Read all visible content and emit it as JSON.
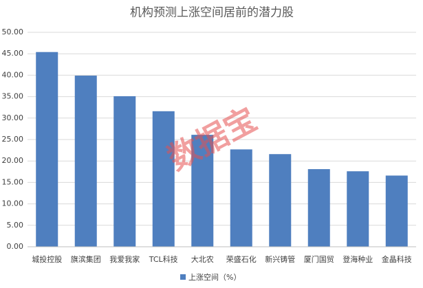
{
  "chart_data": {
    "type": "bar",
    "title": "机构预测上涨空间居前的潜力股",
    "watermark": "数据宝",
    "categories": [
      "城投控股",
      "旗滨集团",
      "我爱我家",
      "TCL科技",
      "大北农",
      "荣盛石化",
      "新兴铸管",
      "厦门国贸",
      "登海种业",
      "金晶科技"
    ],
    "series": [
      {
        "name": "上涨空间（%）",
        "color": "#4f7fbf",
        "values": [
          45.4,
          39.9,
          35.1,
          31.6,
          26.1,
          22.7,
          21.6,
          18.1,
          17.6,
          16.6
        ]
      }
    ],
    "ylim": [
      0,
      50
    ],
    "yticks": [
      {
        "value": 0,
        "label": "0.00"
      },
      {
        "value": 5,
        "label": "5.00"
      },
      {
        "value": 10,
        "label": "10.00"
      },
      {
        "value": 15,
        "label": "15.00"
      },
      {
        "value": 20,
        "label": "20.00"
      },
      {
        "value": 25,
        "label": "25.00"
      },
      {
        "value": 30,
        "label": "30.00"
      },
      {
        "value": 35,
        "label": "35.00"
      },
      {
        "value": 40,
        "label": "40.00"
      },
      {
        "value": 45,
        "label": "45.00"
      },
      {
        "value": 50,
        "label": "50.00"
      }
    ],
    "grid": true,
    "legend": "bottom"
  }
}
